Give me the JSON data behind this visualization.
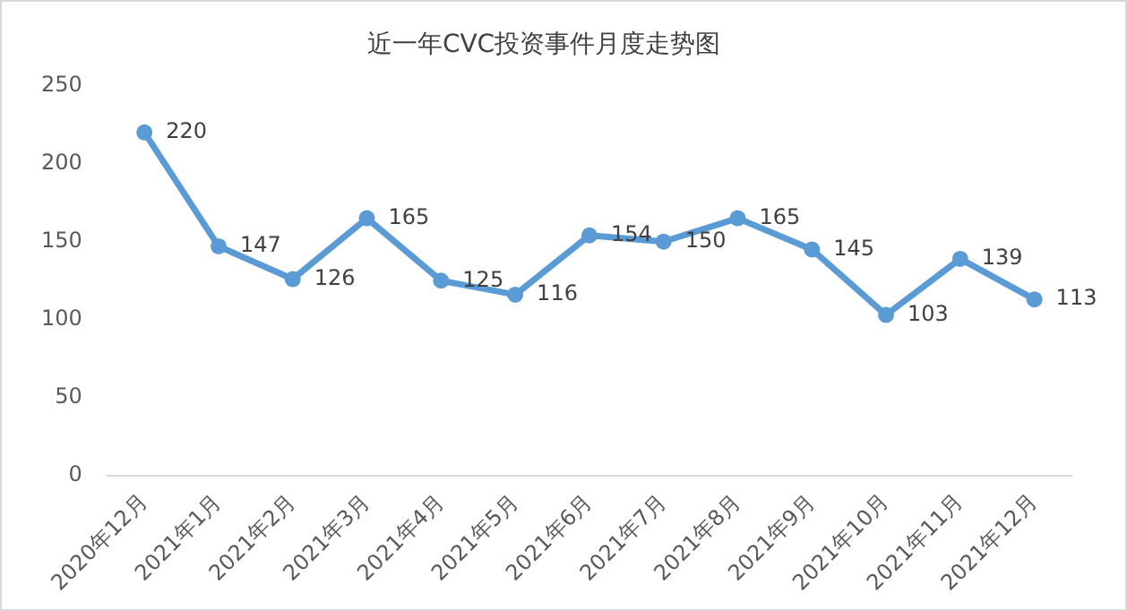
{
  "chart_data": {
    "type": "line",
    "title": "近一年CVC投资事件月度走势图",
    "categories": [
      "2020年12月",
      "2021年1月",
      "2021年2月",
      "2021年3月",
      "2021年4月",
      "2021年5月",
      "2021年6月",
      "2021年7月",
      "2021年8月",
      "2021年9月",
      "2021年10月",
      "2021年11月",
      "2021年12月"
    ],
    "series": [
      {
        "color": "#5b9bd5",
        "values": [
          220,
          147,
          126,
          165,
          125,
          116,
          154,
          150,
          165,
          145,
          103,
          139,
          113
        ]
      }
    ],
    "ylim": [
      0,
      250
    ],
    "yticks": [
      0,
      50,
      100,
      150,
      200,
      250
    ],
    "grid": false,
    "legend": false,
    "marker": "circle",
    "line_style": "solid",
    "data_labels": true
  }
}
